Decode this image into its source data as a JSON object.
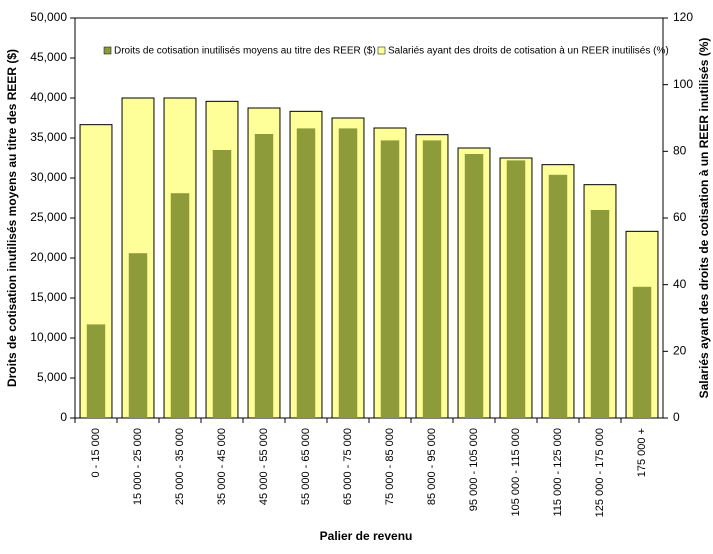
{
  "chart_data": {
    "type": "bar",
    "x_label": "Palier de revenu",
    "y_label": "Droits de cotisation inutilisés moyens au titre des REER ($)",
    "y2_label": "Salariés ayant des droits de cotisation à un REER inutilisés (%)",
    "categories": [
      "0 - 15 000",
      "15 000 - 25 000",
      "25 000 - 35 000",
      "35 000 - 45 000",
      "45 000 - 55 000",
      "55 000 - 65 000",
      "65 000 - 75 000",
      "75 000 - 85 000",
      "85 000 - 95 000",
      "95 000 - 105 000",
      "105 000 - 115 000",
      "115 000 - 125 000",
      "125 000 - 175 000",
      "175 000 +"
    ],
    "series": [
      {
        "name": "Salariés ayant des droits de cotisation à un REER inutilisés (%)",
        "color": "#ffff99",
        "axis": "y2",
        "values": [
          88,
          96,
          96,
          95,
          93,
          92,
          90,
          87,
          85,
          81,
          78,
          76,
          70,
          56
        ]
      },
      {
        "name": "Droits de cotisation inutilisés moyens au titre des REER ($)",
        "color": "#8e9b3a",
        "values": [
          11700,
          20600,
          28100,
          33500,
          35500,
          36200,
          36200,
          34700,
          34700,
          33000,
          32200,
          30400,
          26000,
          16400
        ]
      }
    ],
    "legend_order": [
      1,
      0
    ],
    "ylim": [
      0,
      50000
    ],
    "yticks": [
      {
        "value": 0,
        "label": "0"
      },
      {
        "value": 5000,
        "label": "5,000"
      },
      {
        "value": 10000,
        "label": "10,000"
      },
      {
        "value": 15000,
        "label": "15,000"
      },
      {
        "value": 20000,
        "label": "20,000"
      },
      {
        "value": 25000,
        "label": "25,000"
      },
      {
        "value": 30000,
        "label": "30,000"
      },
      {
        "value": 35000,
        "label": "35,000"
      },
      {
        "value": 40000,
        "label": "40,000"
      },
      {
        "value": 45000,
        "label": "45,000"
      },
      {
        "value": 50000,
        "label": "50,000"
      }
    ],
    "y2lim": [
      0,
      120
    ],
    "y2ticks": [
      0,
      20,
      40,
      60,
      80,
      100,
      120
    ],
    "grid": false
  }
}
